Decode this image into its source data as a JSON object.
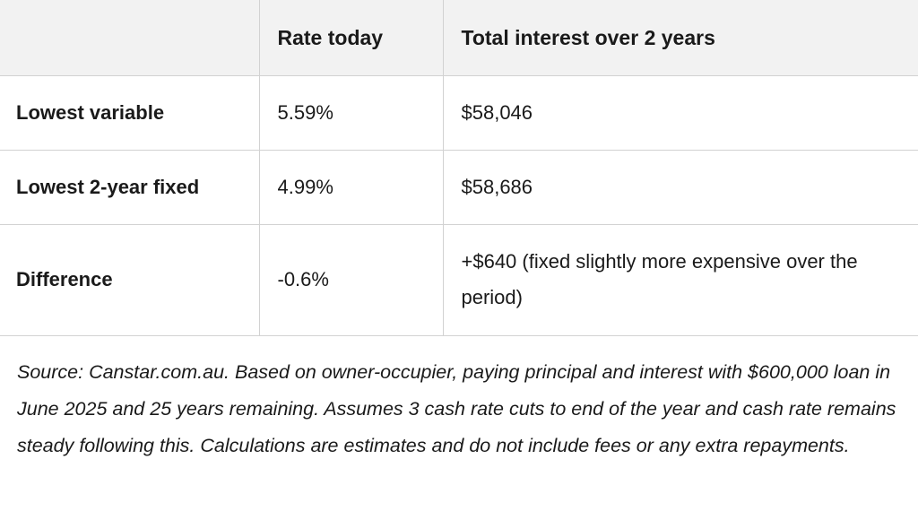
{
  "table": {
    "headers": [
      "",
      "Rate today",
      "Total interest over 2 years"
    ],
    "rows": [
      {
        "label": "Lowest variable",
        "rate": "5.59%",
        "interest": "$58,046"
      },
      {
        "label": "Lowest 2-year fixed",
        "rate": "4.99%",
        "interest": "$58,686"
      },
      {
        "label": "Difference",
        "rate": "-0.6%",
        "interest": "+$640 (fixed slightly more expensive over the period)"
      }
    ]
  },
  "source_note": "Source: Canstar.com.au. Based on owner-occupier, paying principal and interest with $600,000 loan in June 2025 and 25 years remaining. Assumes 3 cash rate cuts to end of the year and cash rate remains steady following this. Calculations are estimates and do not include fees or any extra repayments."
}
